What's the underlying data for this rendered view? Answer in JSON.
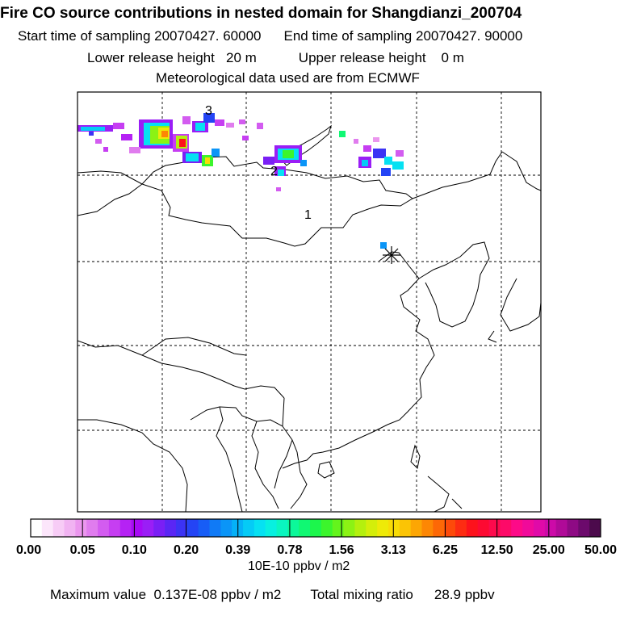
{
  "header": {
    "title": "Fire CO source contributions in nested domain for Shangdianzi_200704",
    "start_label": "Start time of sampling",
    "start_value": "20070427. 60000",
    "end_label": "End time of sampling",
    "end_value": "20070427. 90000",
    "lower_label": "Lower release height",
    "lower_value": "20 m",
    "upper_label": "Upper release height",
    "upper_value": "0 m",
    "met": "Meteorological data used are from ECMWF"
  },
  "map": {
    "receptor_marker": "asterisk-icon",
    "region_labels": [
      "1",
      "2",
      "3"
    ]
  },
  "legend": {
    "tick_labels": [
      "0.00",
      "0.05",
      "0.10",
      "0.20",
      "0.39",
      "0.78",
      "1.56",
      "3.13",
      "6.25",
      "12.50",
      "25.00",
      "50.00"
    ],
    "units": "10E-10 ppbv / m2",
    "colors": [
      "#ffffff",
      "#fce6fb",
      "#f7ccf6",
      "#f1b3f2",
      "#eb96ee",
      "#e07cee",
      "#d35cf0",
      "#c63ef2",
      "#b522f4",
      "#a70af5",
      "#9a1ef6",
      "#7a1ff5",
      "#5a26f4",
      "#3c33f4",
      "#2444f5",
      "#175df6",
      "#107af6",
      "#0b95f7",
      "#05b1f7",
      "#05cbf6",
      "#06e1f2",
      "#08f0e0",
      "#0af6c0",
      "#0cf89a",
      "#10f873",
      "#1cf64c",
      "#3cf52c",
      "#64f41c",
      "#8cf214",
      "#b4f00e",
      "#d4ee0a",
      "#eeea08",
      "#f8dc06",
      "#fbc405",
      "#fca604",
      "#fd8704",
      "#fd6806",
      "#fd4a0a",
      "#fd2c12",
      "#fd121c",
      "#fd0a32",
      "#fd0a4c",
      "#fd0a68",
      "#fd0a88",
      "#f00a9a",
      "#e00aa8",
      "#cc0aa8",
      "#b00a98",
      "#8e0a84",
      "#6c0a6c",
      "#4c0a4c"
    ]
  },
  "footer": {
    "max_label": "Maximum value",
    "max_value": "0.137E-08 ppbv / m2",
    "total_label": "Total mixing ratio",
    "total_value": "28.9 ppbv"
  }
}
